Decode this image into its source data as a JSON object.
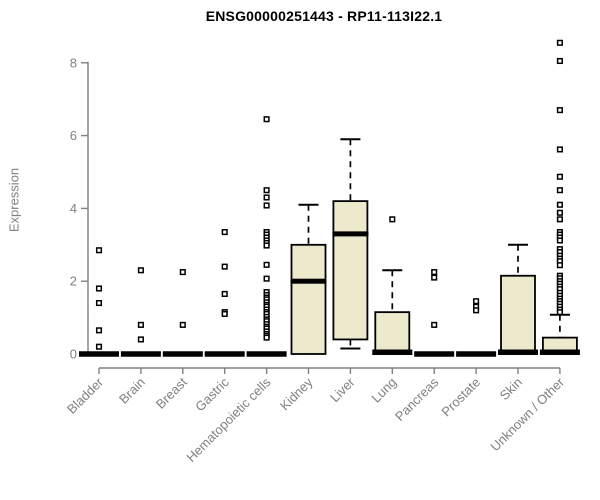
{
  "chart_data": {
    "type": "boxplot",
    "title": "ENSG00000251443 - RP11-113I22.1",
    "ylabel": "Expression",
    "xlabel": "",
    "ylim": [
      0,
      8.6
    ],
    "yticks": [
      0,
      2,
      4,
      6,
      8
    ],
    "grid": false,
    "legend": false,
    "categories": [
      "Bladder",
      "Brain",
      "Breast",
      "Gastric",
      "Hematopoietic cells",
      "Kidney",
      "Liver",
      "Lung",
      "Pancreas",
      "Prostate",
      "Skin",
      "Unknown / Other"
    ],
    "boxes": [
      {
        "category": "Bladder",
        "q1": 0,
        "median": 0,
        "q3": 0,
        "whisker_low": 0,
        "whisker_high": 0,
        "outliers": [
          2.85,
          1.8,
          1.4,
          0.65,
          0.2
        ]
      },
      {
        "category": "Brain",
        "q1": 0,
        "median": 0,
        "q3": 0,
        "whisker_low": 0,
        "whisker_high": 0,
        "outliers": [
          2.3,
          0.8,
          0.4
        ]
      },
      {
        "category": "Breast",
        "q1": 0,
        "median": 0,
        "q3": 0,
        "whisker_low": 0,
        "whisker_high": 0,
        "outliers": [
          2.25,
          0.8
        ]
      },
      {
        "category": "Gastric",
        "q1": 0,
        "median": 0,
        "q3": 0,
        "whisker_low": 0,
        "whisker_high": 0,
        "outliers": [
          3.35,
          2.4,
          1.65,
          1.15,
          1.1
        ]
      },
      {
        "category": "Hematopoietic cells",
        "q1": 0,
        "median": 0,
        "q3": 0,
        "whisker_low": 0,
        "whisker_high": 0,
        "outliers": [
          6.45,
          4.5,
          4.3,
          4.08,
          3.35,
          3.28,
          3.2,
          3.12,
          3.05,
          2.98,
          2.45,
          2.07,
          1.7,
          1.62,
          1.55,
          1.5,
          1.42,
          1.35,
          1.3,
          1.22,
          1.15,
          1.1,
          1.02,
          0.95,
          0.9,
          0.82,
          0.75,
          0.7,
          0.62,
          0.55,
          0.5,
          0.45
        ]
      },
      {
        "category": "Kidney",
        "q1": 0,
        "median": 2.0,
        "q3": 3.0,
        "whisker_low": 0,
        "whisker_high": 4.1,
        "outliers": []
      },
      {
        "category": "Liver",
        "q1": 0.4,
        "median": 3.3,
        "q3": 4.2,
        "whisker_low": 0.15,
        "whisker_high": 5.9,
        "outliers": []
      },
      {
        "category": "Lung",
        "q1": 0,
        "median": 0,
        "q3": 1.15,
        "whisker_low": 0,
        "whisker_high": 2.3,
        "outliers": [
          3.7
        ]
      },
      {
        "category": "Pancreas",
        "q1": 0,
        "median": 0,
        "q3": 0,
        "whisker_low": 0,
        "whisker_high": 0,
        "outliers": [
          2.25,
          2.1,
          0.8
        ]
      },
      {
        "category": "Prostate",
        "q1": 0,
        "median": 0,
        "q3": 0,
        "whisker_low": 0,
        "whisker_high": 0,
        "outliers": [
          1.45,
          1.3,
          1.2
        ]
      },
      {
        "category": "Skin",
        "q1": 0,
        "median": 0,
        "q3": 2.15,
        "whisker_low": 0,
        "whisker_high": 3.0,
        "outliers": []
      },
      {
        "category": "Unknown / Other",
        "q1": 0,
        "median": 0,
        "q3": 0.45,
        "whisker_low": 0,
        "whisker_high": 1.08,
        "outliers": [
          8.55,
          8.05,
          6.7,
          5.62,
          4.87,
          4.5,
          4.1,
          3.88,
          3.7,
          3.35,
          3.28,
          3.2,
          3.12,
          2.88,
          2.8,
          2.7,
          2.62,
          2.55,
          2.44,
          2.15,
          2.08,
          2.0,
          1.93,
          1.85,
          1.78,
          1.68,
          1.6,
          1.52,
          1.45,
          1.38,
          1.3,
          1.22,
          1.15
        ]
      }
    ],
    "style": {
      "box_fill": "#ece9cd",
      "box_border": "#000000",
      "median_color": "#000000",
      "outlier_color": "#000000",
      "axis_color": "#808080",
      "title_color": "#000000",
      "background": "#ffffff"
    }
  }
}
